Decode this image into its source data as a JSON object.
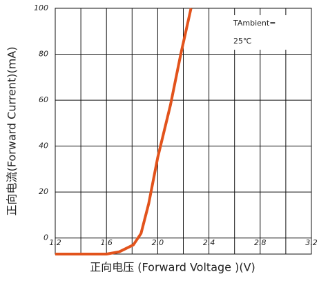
{
  "chart_data": {
    "type": "line",
    "x_label": "正向电压 (Forward Voltage )(V)",
    "y_label": "正向电流(Forward Current)(mA)",
    "annotation": [
      "TAmbient=",
      "25℃"
    ],
    "x": [
      1.2,
      1.6,
      1.7,
      1.81,
      1.87,
      1.93,
      2.0,
      2.1,
      2.18,
      2.26
    ],
    "series": [
      {
        "name": "Forward Current",
        "color": "#e2531c",
        "values": [
          -7,
          -7,
          -6,
          -3,
          2,
          15,
          35,
          58,
          80,
          100
        ]
      }
    ],
    "xlim": [
      1.2,
      3.2
    ],
    "xticks": [
      1.2,
      1.6,
      {
        "value": 2,
        "label": "2.0"
      },
      2.4,
      2.8,
      3.2
    ],
    "xminor": [
      1.4,
      1.8,
      2.2,
      2.6,
      3.0
    ],
    "ylim": [
      -7,
      100
    ],
    "yticks": [
      0,
      20,
      40,
      60,
      80,
      100
    ],
    "grid": true
  }
}
